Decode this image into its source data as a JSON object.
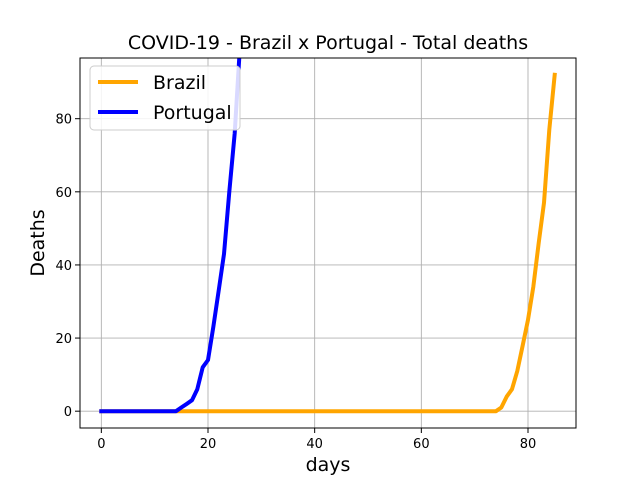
{
  "chart_data": {
    "type": "line",
    "title": "COVID-19 - Brazil x Portugal - Total deaths",
    "xlabel": "days",
    "ylabel": "Deaths",
    "xlim": [
      -4,
      89
    ],
    "ylim": [
      -4.6,
      96.6
    ],
    "xticks": [
      0,
      20,
      40,
      60,
      80
    ],
    "yticks": [
      0,
      20,
      40,
      60,
      80
    ],
    "grid": true,
    "legend_position": "top-left",
    "series": [
      {
        "name": "Brazil",
        "color": "#FFA500",
        "x": [
          0,
          5,
          10,
          14,
          15,
          20,
          30,
          40,
          50,
          60,
          70,
          73,
          74,
          75,
          76,
          77,
          78,
          79,
          80,
          81,
          82,
          83,
          84,
          85
        ],
        "y": [
          0,
          0,
          0,
          0,
          0,
          0,
          0,
          0,
          0,
          0,
          0,
          0,
          0,
          1,
          4,
          6,
          11,
          18,
          25,
          34,
          46,
          57,
          77,
          92
        ]
      },
      {
        "name": "Portugal",
        "color": "#0000FF",
        "x": [
          0,
          5,
          10,
          14,
          15,
          16,
          17,
          18,
          19,
          20,
          21,
          22,
          23,
          24,
          25,
          26
        ],
        "y": [
          0,
          0,
          0,
          0,
          1,
          2,
          3,
          6,
          12,
          14,
          23,
          33,
          43,
          60,
          76,
          100
        ]
      }
    ]
  }
}
